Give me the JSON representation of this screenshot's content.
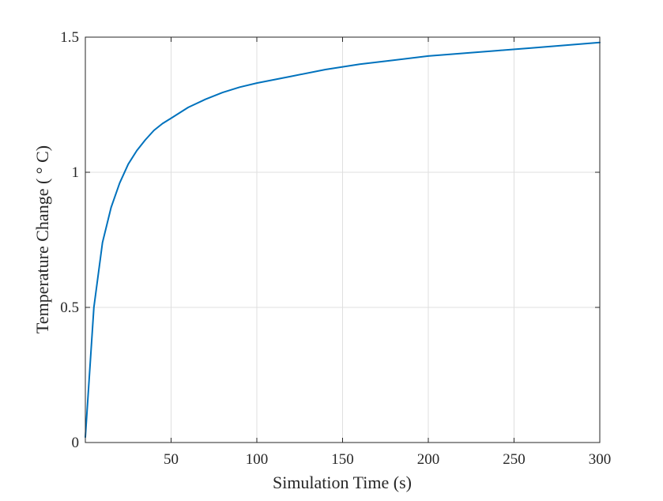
{
  "chart_data": {
    "type": "line",
    "title": "",
    "xlabel": "Simulation Time (s)",
    "ylabel": "Temperature Change ( ° C)",
    "xlim": [
      0,
      300
    ],
    "ylim": [
      0,
      1.5
    ],
    "xticks": [
      50,
      100,
      150,
      200,
      250,
      300
    ],
    "xtick_labels": [
      "50",
      "100",
      "150",
      "200",
      "250",
      "300"
    ],
    "yticks": [
      0,
      0.5,
      1,
      1.5
    ],
    "ytick_labels": [
      "0",
      "0.5",
      "1",
      "1.5"
    ],
    "grid": true,
    "box": true,
    "series": [
      {
        "color": "#0072BD",
        "x": [
          0,
          5,
          10,
          15,
          20,
          25,
          30,
          35,
          40,
          45,
          50,
          60,
          70,
          80,
          90,
          100,
          120,
          140,
          160,
          180,
          200,
          220,
          240,
          260,
          280,
          300
        ],
        "y": [
          0.02,
          0.5,
          0.74,
          0.87,
          0.96,
          1.03,
          1.08,
          1.12,
          1.155,
          1.18,
          1.2,
          1.24,
          1.27,
          1.295,
          1.315,
          1.33,
          1.355,
          1.38,
          1.4,
          1.415,
          1.43,
          1.44,
          1.45,
          1.46,
          1.47,
          1.48
        ]
      }
    ]
  }
}
